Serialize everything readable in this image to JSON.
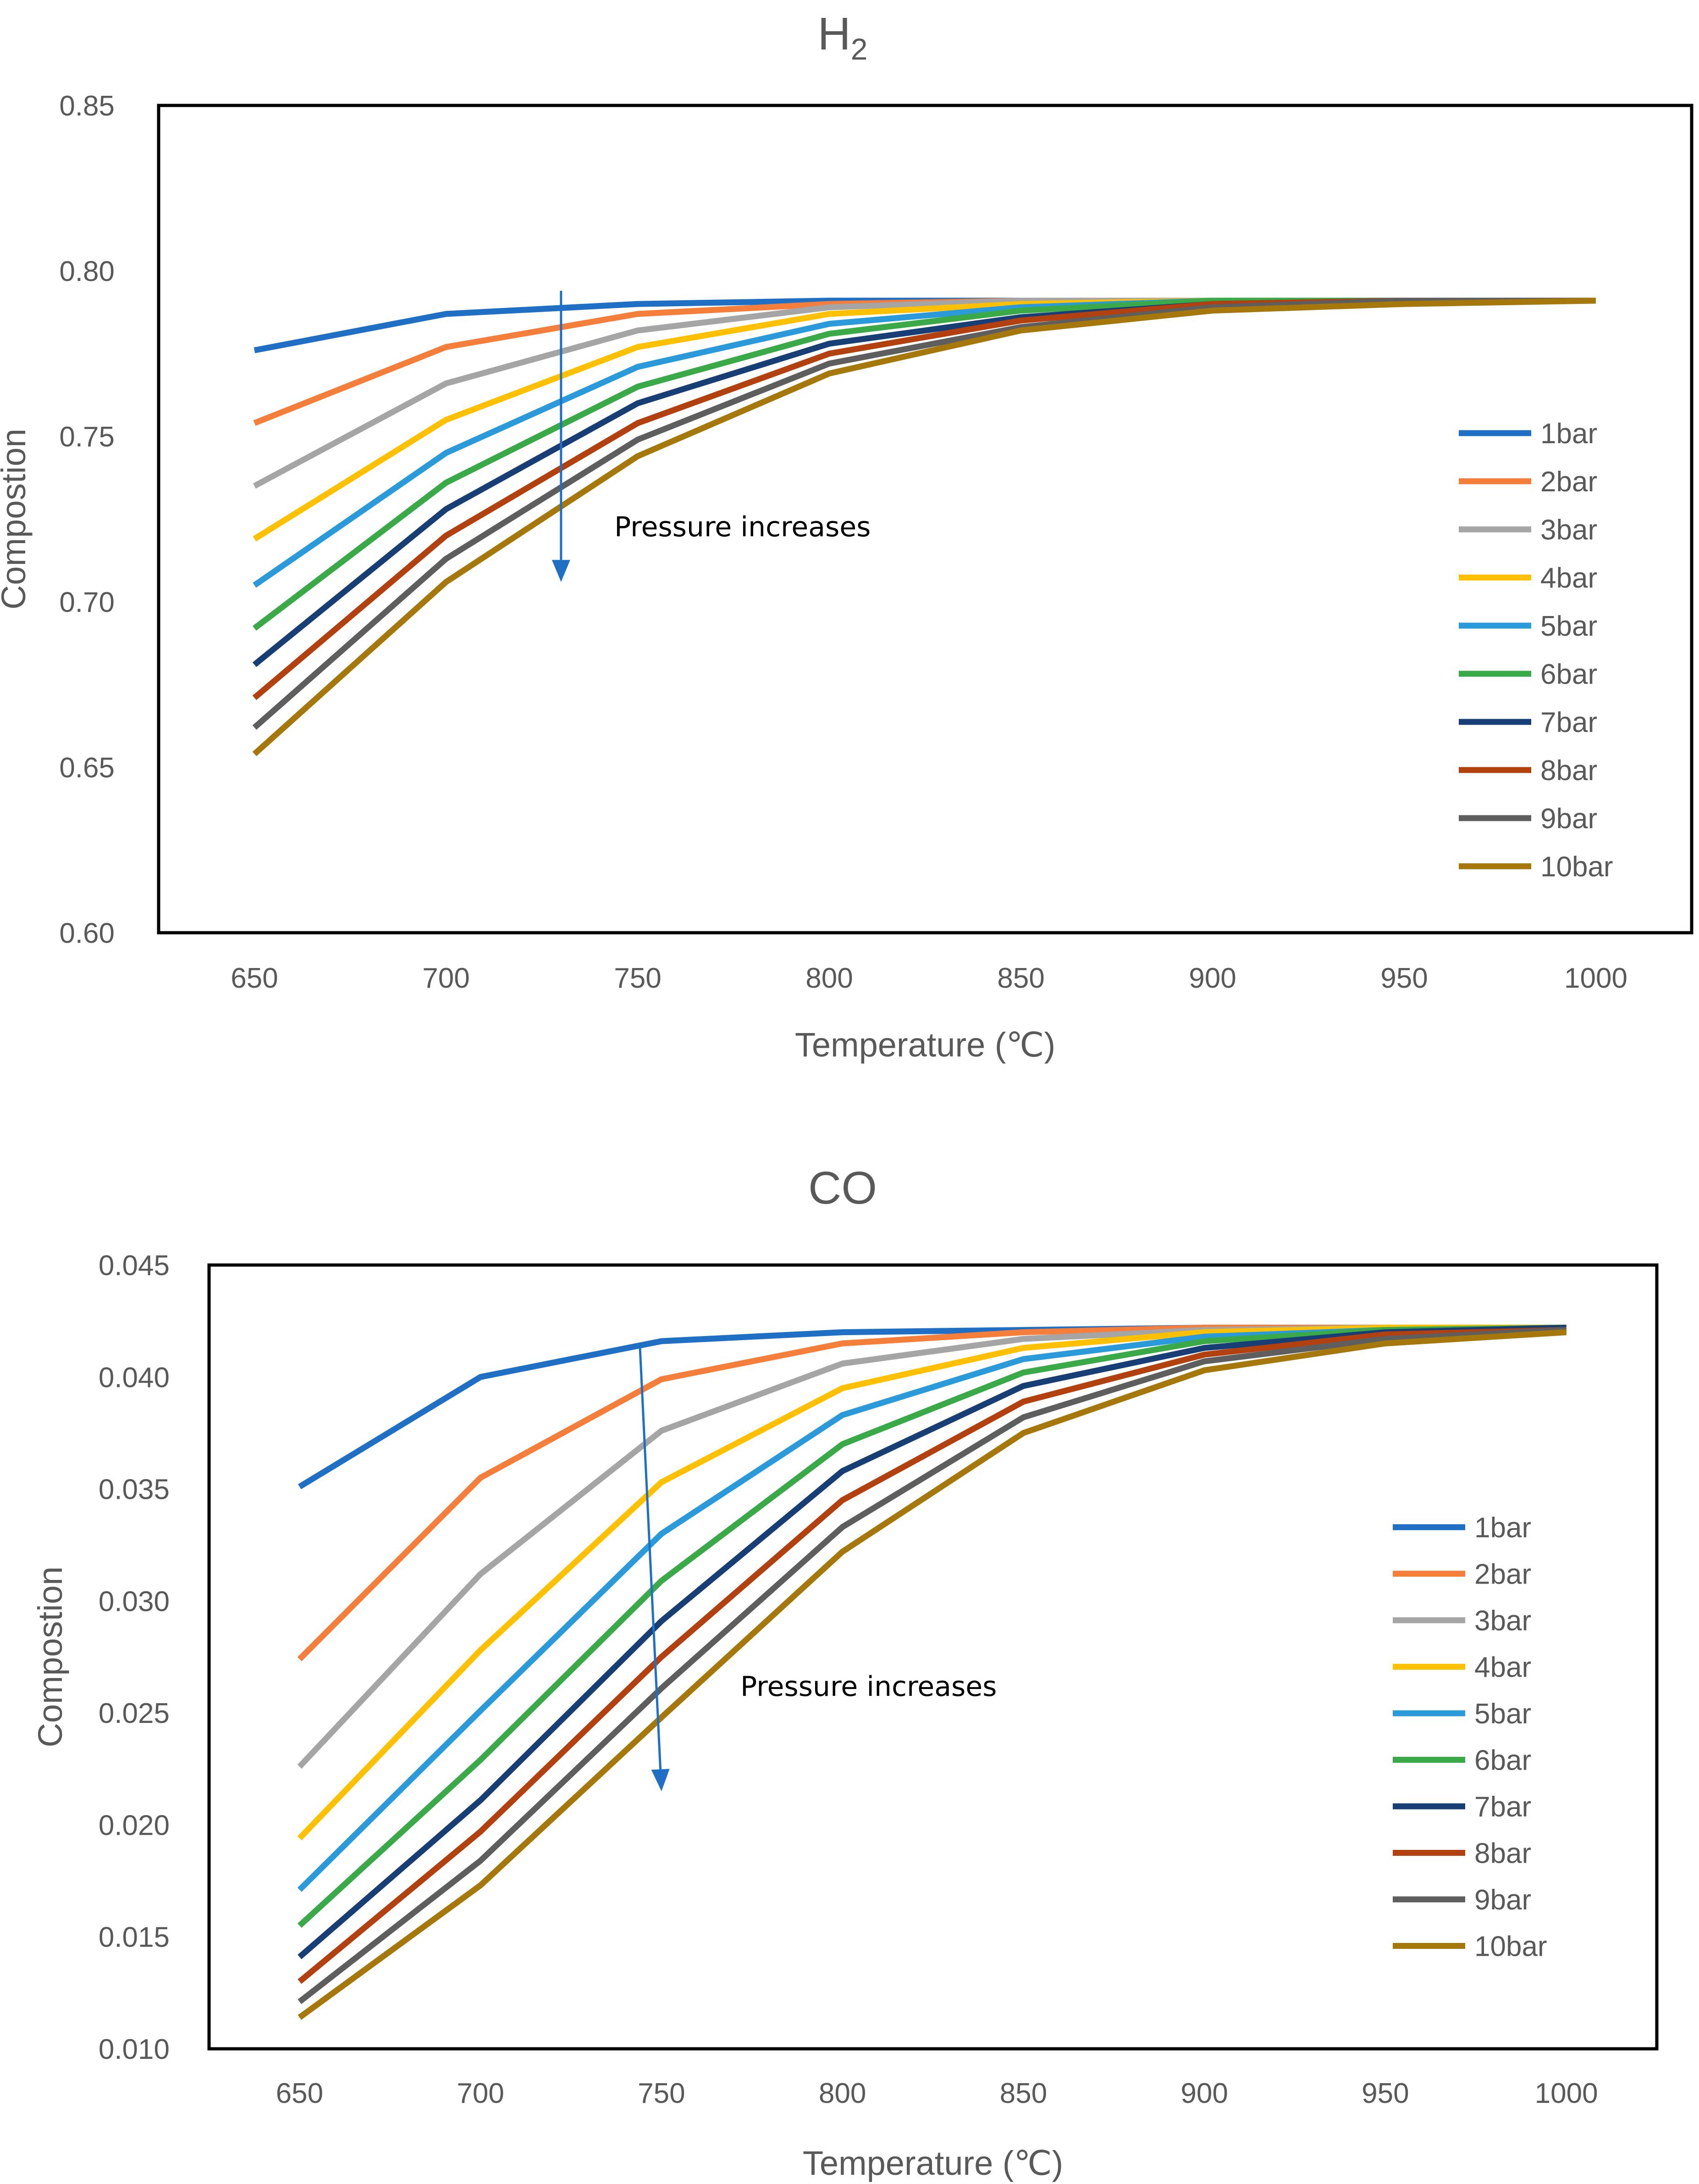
{
  "chart_data": [
    {
      "type": "line",
      "title": "H",
      "title_subscript": "2",
      "xlabel": "Temperature (℃)",
      "ylabel": "Compostion",
      "ylim": [
        0.6,
        0.85
      ],
      "xlim": [
        625,
        1025
      ],
      "x": [
        650,
        700,
        750,
        800,
        850,
        900,
        950,
        1000
      ],
      "x_tick_labels": [
        "650",
        "700",
        "750",
        "800",
        "850",
        "900",
        "950",
        "1000"
      ],
      "y_tick_values": [
        0.6,
        0.65,
        0.7,
        0.75,
        0.8,
        0.85
      ],
      "y_tick_labels": [
        "0.60",
        "0.65",
        "0.70",
        "0.75",
        "0.80",
        "0.85"
      ],
      "legend_position": "right",
      "annotation": "Pressure increases",
      "arrow": {
        "from": [
          730,
          0.794
        ],
        "to": [
          730,
          0.706
        ]
      },
      "series": [
        {
          "name": "1bar",
          "color": "#1F6FC4",
          "values": [
            0.776,
            0.787,
            0.79,
            0.791,
            0.791,
            0.791,
            0.791,
            0.791
          ]
        },
        {
          "name": "2bar",
          "color": "#F47E3A",
          "values": [
            0.754,
            0.777,
            0.787,
            0.79,
            0.791,
            0.791,
            0.791,
            0.791
          ]
        },
        {
          "name": "3bar",
          "color": "#A5A5A5",
          "values": [
            0.735,
            0.766,
            0.782,
            0.789,
            0.791,
            0.791,
            0.791,
            0.791
          ]
        },
        {
          "name": "4bar",
          "color": "#FFC000",
          "values": [
            0.719,
            0.755,
            0.777,
            0.787,
            0.79,
            0.791,
            0.791,
            0.791
          ]
        },
        {
          "name": "5bar",
          "color": "#2A9ADA",
          "values": [
            0.705,
            0.745,
            0.771,
            0.784,
            0.789,
            0.791,
            0.791,
            0.791
          ]
        },
        {
          "name": "6bar",
          "color": "#3AAA48",
          "values": [
            0.692,
            0.736,
            0.765,
            0.781,
            0.788,
            0.791,
            0.791,
            0.791
          ]
        },
        {
          "name": "7bar",
          "color": "#183F75",
          "values": [
            0.681,
            0.728,
            0.76,
            0.778,
            0.786,
            0.79,
            0.791,
            0.791
          ]
        },
        {
          "name": "8bar",
          "color": "#B3410F",
          "values": [
            0.671,
            0.72,
            0.754,
            0.775,
            0.785,
            0.79,
            0.791,
            0.791
          ]
        },
        {
          "name": "9bar",
          "color": "#5E5E5E",
          "values": [
            0.662,
            0.713,
            0.749,
            0.772,
            0.783,
            0.789,
            0.791,
            0.791
          ]
        },
        {
          "name": "10bar",
          "color": "#A6770B",
          "values": [
            0.654,
            0.706,
            0.744,
            0.769,
            0.782,
            0.788,
            0.79,
            0.791
          ]
        }
      ]
    },
    {
      "type": "line",
      "title": "CO",
      "title_subscript": "",
      "xlabel": "Temperature (℃)",
      "ylabel": "Compostion",
      "ylim": [
        0.01,
        0.045
      ],
      "xlim": [
        625,
        1025
      ],
      "x": [
        650,
        700,
        750,
        800,
        850,
        900,
        950,
        1000
      ],
      "x_tick_labels": [
        "650",
        "700",
        "750",
        "800",
        "850",
        "900",
        "950",
        "1000"
      ],
      "y_tick_values": [
        0.01,
        0.015,
        0.02,
        0.025,
        0.03,
        0.035,
        0.04,
        0.045
      ],
      "y_tick_labels": [
        "0.010",
        "0.015",
        "0.020",
        "0.025",
        "0.030",
        "0.035",
        "0.040",
        "0.045"
      ],
      "legend_position": "right",
      "annotation": "Pressure increases",
      "arrow": {
        "from": [
          744,
          0.0415
        ],
        "to": [
          750,
          0.0215
        ]
      },
      "series": [
        {
          "name": "1bar",
          "color": "#1F6FC4",
          "values": [
            0.0351,
            0.04,
            0.0416,
            0.042,
            0.0421,
            0.0422,
            0.0422,
            0.0422
          ]
        },
        {
          "name": "2bar",
          "color": "#F47E3A",
          "values": [
            0.0274,
            0.0355,
            0.0399,
            0.0415,
            0.042,
            0.0422,
            0.0422,
            0.0422
          ]
        },
        {
          "name": "3bar",
          "color": "#A5A5A5",
          "values": [
            0.0226,
            0.0312,
            0.0376,
            0.0406,
            0.0417,
            0.0421,
            0.0422,
            0.0422
          ]
        },
        {
          "name": "4bar",
          "color": "#FFC000",
          "values": [
            0.0194,
            0.0278,
            0.0353,
            0.0395,
            0.0413,
            0.042,
            0.0422,
            0.0422
          ]
        },
        {
          "name": "5bar",
          "color": "#2A9ADA",
          "values": [
            0.0171,
            0.0251,
            0.033,
            0.0383,
            0.0408,
            0.0418,
            0.0421,
            0.0422
          ]
        },
        {
          "name": "6bar",
          "color": "#3AAA48",
          "values": [
            0.0155,
            0.0229,
            0.0309,
            0.037,
            0.0402,
            0.0416,
            0.0421,
            0.0422
          ]
        },
        {
          "name": "7bar",
          "color": "#183F75",
          "values": [
            0.0141,
            0.0211,
            0.0291,
            0.0358,
            0.0396,
            0.0413,
            0.042,
            0.0422
          ]
        },
        {
          "name": "8bar",
          "color": "#B3410F",
          "values": [
            0.013,
            0.0197,
            0.0275,
            0.0345,
            0.0389,
            0.041,
            0.0419,
            0.0421
          ]
        },
        {
          "name": "9bar",
          "color": "#5E5E5E",
          "values": [
            0.0121,
            0.0184,
            0.0261,
            0.0333,
            0.0382,
            0.0407,
            0.0417,
            0.0421
          ]
        },
        {
          "name": "10bar",
          "color": "#A6770B",
          "values": [
            0.0114,
            0.0173,
            0.0248,
            0.0322,
            0.0375,
            0.0403,
            0.0415,
            0.042
          ]
        }
      ]
    }
  ]
}
